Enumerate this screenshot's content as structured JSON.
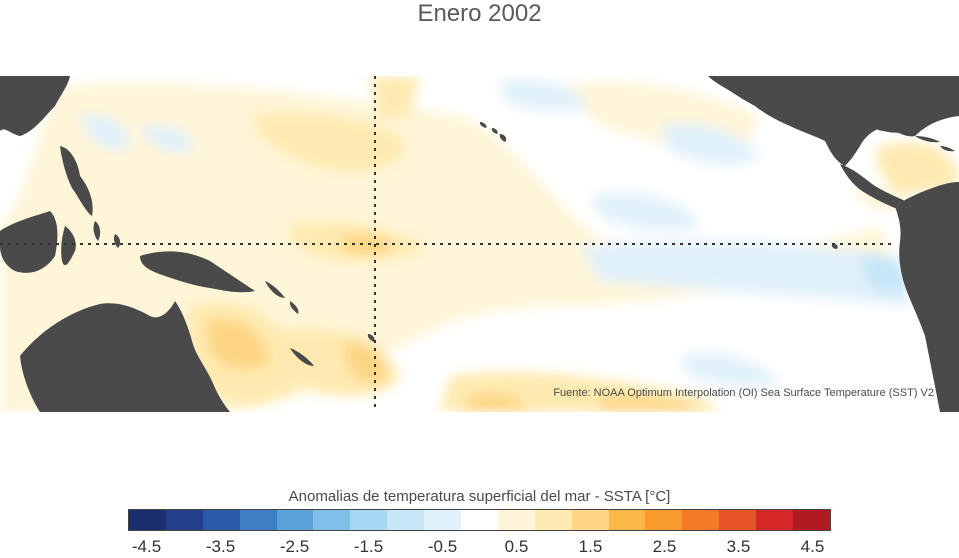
{
  "title": "Enero 2002",
  "source_note": "Fuente: NOAA Optimum Interpolation (OI) Sea Surface Temperature (SST) V2",
  "colorbar": {
    "title": "Anomalias de temperatura superficial del mar - SSTA  [°C]",
    "colors": [
      "#1b2f6e",
      "#223f8c",
      "#2a5ba8",
      "#3d7fc2",
      "#5aa3d8",
      "#7fbfe8",
      "#a6d8f3",
      "#c6e6f7",
      "#e1f1fa",
      "#ffffff",
      "#fff5d8",
      "#feeab0",
      "#fdd584",
      "#fdb84a",
      "#f99a2e",
      "#f47a28",
      "#e65525",
      "#d62828",
      "#b01a20"
    ],
    "tick_labels": [
      "-4.5",
      "-3.5",
      "-2.5",
      "-1.5",
      "-0.5",
      "0.5",
      "1.5",
      "2.5",
      "3.5",
      "4.5"
    ]
  },
  "map": {
    "land_color": "#4a4a4a",
    "gridline_color": "#333333",
    "anomaly_field": {
      "units": "°C",
      "approx_max": 2.0,
      "approx_min": -1.0
    }
  }
}
